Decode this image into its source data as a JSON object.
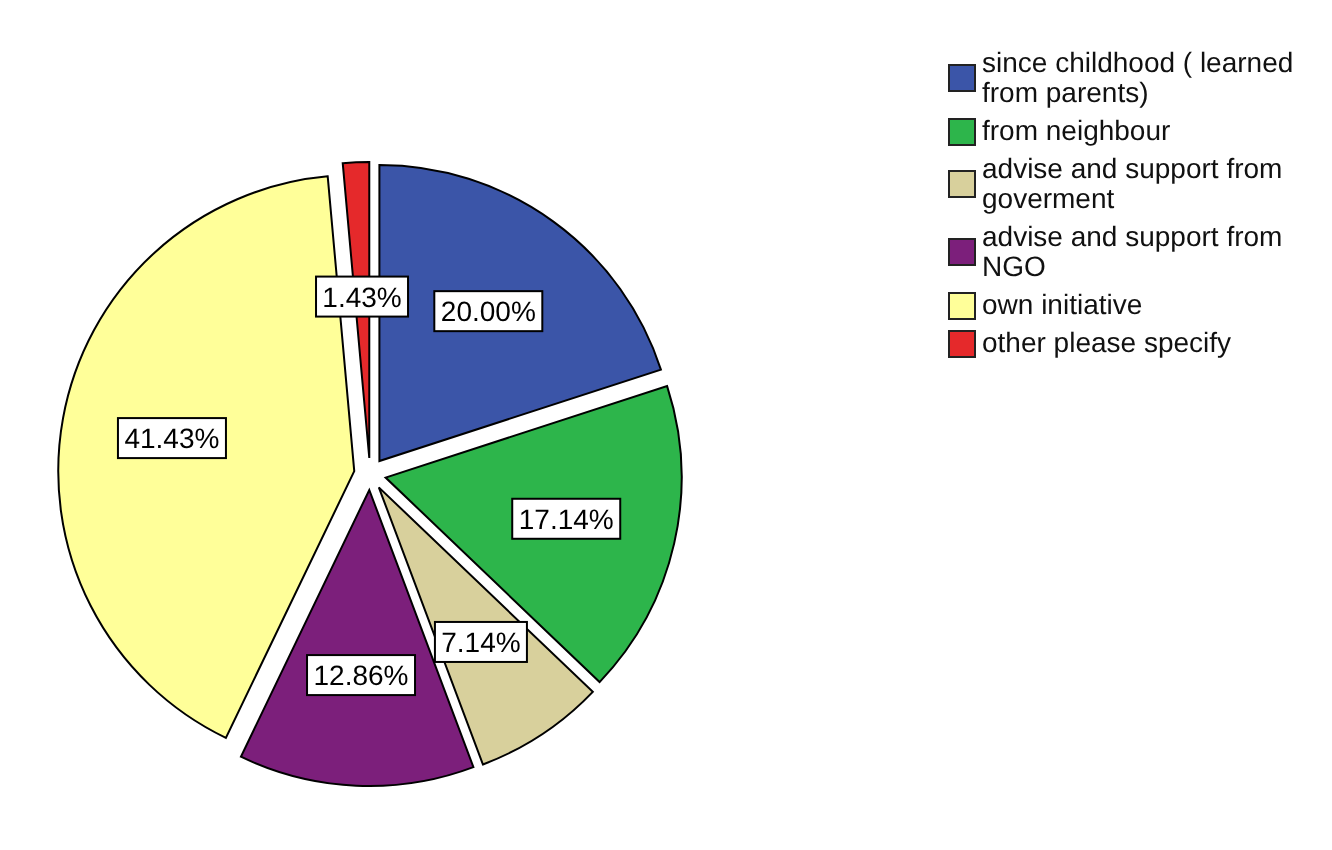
{
  "chart_data": {
    "type": "pie",
    "categories": [
      "since childhood ( learned from parents)",
      "from neighbour",
      "advise and support from goverment",
      "advise and support from NGO",
      "own initiative",
      "other please specify"
    ],
    "values": [
      20.0,
      17.14,
      7.14,
      12.86,
      41.43,
      1.43
    ],
    "value_labels": [
      "20.00%",
      "17.14%",
      "7.14%",
      "12.86%",
      "41.43%",
      "1.43%"
    ],
    "colors": [
      "#3b55a8",
      "#2db54b",
      "#d8d09c",
      "#7c1f7b",
      "#ffff99",
      "#e5292b"
    ],
    "legend": "top right"
  }
}
